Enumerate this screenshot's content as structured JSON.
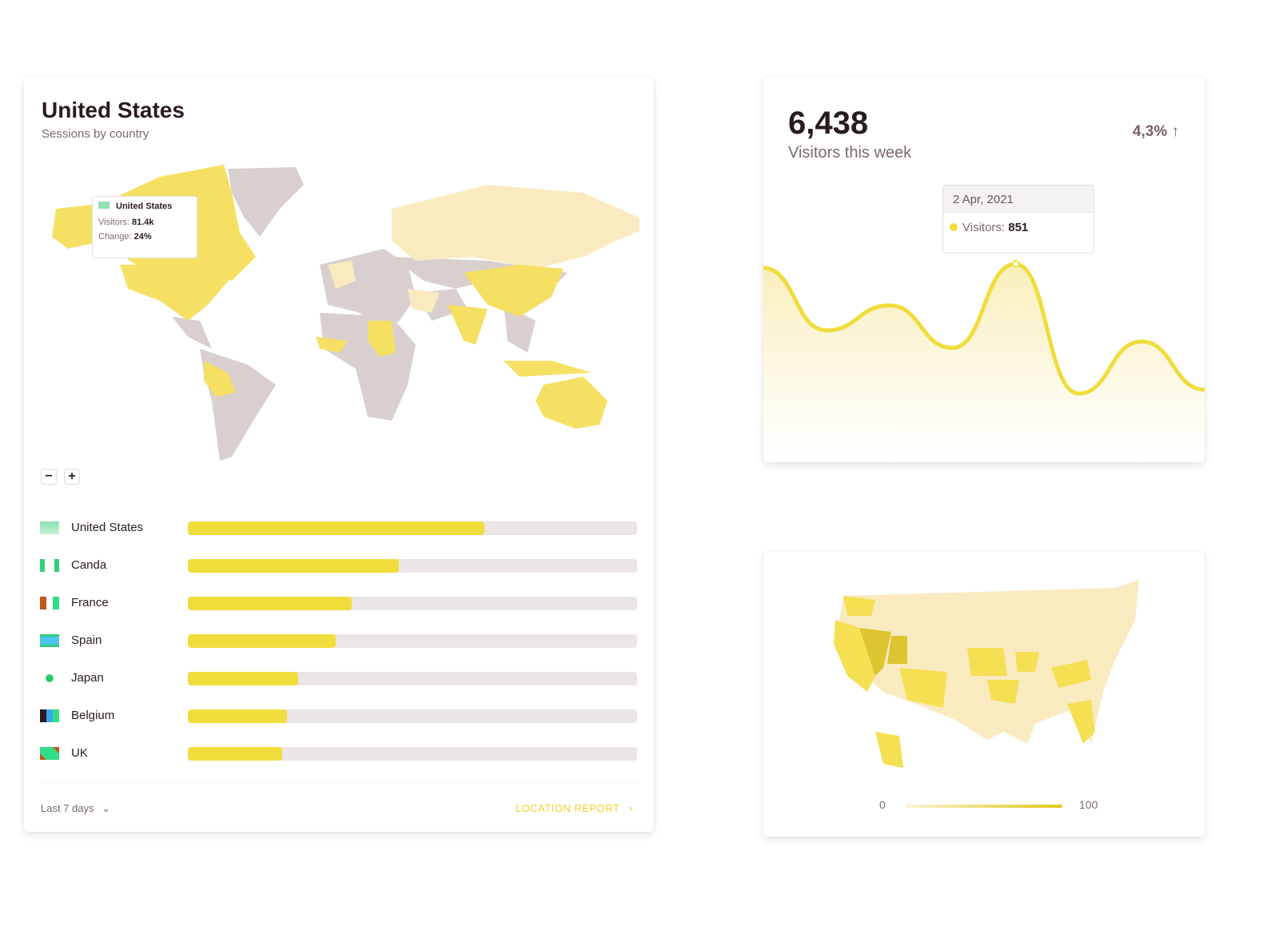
{
  "country_card": {
    "title": "United States",
    "subtitle": "Sessions by country",
    "tooltip": {
      "country": "United States",
      "visitors_label": "Visitors:",
      "visitors": "81.4k",
      "change_label": "Change:",
      "change": "24%"
    },
    "zoom_out": "−",
    "zoom_in": "+",
    "countries": [
      {
        "name": "United States",
        "percent": 66,
        "flag": "us-flag"
      },
      {
        "name": "Canda",
        "percent": 47,
        "flag": "canada-flag"
      },
      {
        "name": "France",
        "percent": 36.5,
        "flag": "france-flag"
      },
      {
        "name": "Spain",
        "percent": 33,
        "flag": "spain-flag"
      },
      {
        "name": "Japan",
        "percent": 24.5,
        "flag": "japan-flag"
      },
      {
        "name": "Belgium",
        "percent": 22,
        "flag": "belgium-flag"
      },
      {
        "name": "UK",
        "percent": 21,
        "flag": "uk-flag"
      }
    ],
    "range": "Last 7 days",
    "report_link": "LOCATION REPORT"
  },
  "visitors_card": {
    "value": "6,438",
    "label": "Visitors this week",
    "change": "4,3%",
    "tooltip": {
      "date": "2 Apr, 2021",
      "label": "Visitors:",
      "value": "851"
    }
  },
  "us_map_card": {
    "legend_min": "0",
    "legend_max": "100"
  },
  "colors": {
    "accent": "#f0dd3c",
    "track": "#ebe5e5",
    "land": "#d9cfcf",
    "light": "#faeac0"
  },
  "chart_data": {
    "type": "area",
    "series": [
      {
        "values": [
          834,
          566,
          673,
          491,
          851,
          295,
          518,
          312
        ]
      }
    ],
    "highlight": {
      "date": "2 Apr, 2021",
      "value": 851
    }
  }
}
